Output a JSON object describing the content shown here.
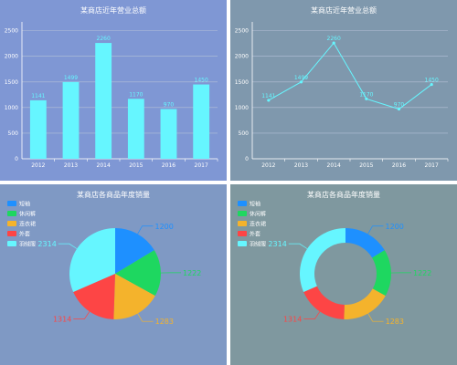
{
  "colors": {
    "series": "#66f6ff",
    "grid": "#b5c1d8",
    "slices": [
      "#1e90ff",
      "#1ed760",
      "#f4b32c",
      "#fd4545",
      "#66f6ff"
    ]
  },
  "chart_data": [
    {
      "type": "bar",
      "title": "某商店近年营业总额",
      "categories": [
        "2012",
        "2013",
        "2014",
        "2015",
        "2016",
        "2017"
      ],
      "values": [
        1141,
        1499,
        2260,
        1170,
        970,
        1450
      ],
      "yticks": [
        "0",
        "500",
        "1000",
        "1500",
        "2000",
        "2500"
      ],
      "ylim": [
        0,
        2600
      ],
      "grid": true
    },
    {
      "type": "line",
      "title": "某商店近年营业总额",
      "categories": [
        "2012",
        "2013",
        "2014",
        "2015",
        "2016",
        "2017"
      ],
      "values": [
        1141,
        1499,
        2260,
        1170,
        970,
        1450
      ],
      "yticks": [
        "0",
        "500",
        "1000",
        "1500",
        "2000",
        "2500"
      ],
      "ylim": [
        0,
        2600
      ],
      "grid": true
    },
    {
      "type": "pie",
      "title": "某商店各商品年度销量",
      "labels": [
        "短袖",
        "休闲裤",
        "连衣裙",
        "外套",
        "羽绒服"
      ],
      "values": [
        1200,
        1222,
        1283,
        1314,
        2314
      ],
      "legend": "top-left"
    },
    {
      "type": "pie",
      "variant": "donut",
      "title": "某商店各商品年度销量",
      "labels": [
        "短袖",
        "休闲裤",
        "连衣裙",
        "外套",
        "羽绒服"
      ],
      "values": [
        1200,
        1222,
        1283,
        1314,
        2314
      ],
      "legend": "top-left"
    }
  ]
}
